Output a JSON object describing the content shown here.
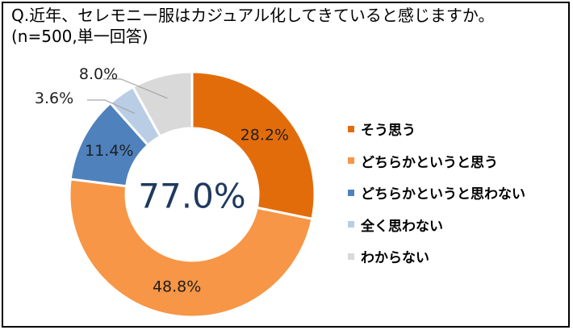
{
  "title": {
    "line1": "Q.近年、セレモニー服はカジュアル化してきていると感じますか。",
    "line2": "(n=500,単一回答)"
  },
  "chart_data": {
    "type": "pie",
    "donut": true,
    "center_label": "77.0%",
    "categories": [
      "そう思う",
      "どちらかというと思う",
      "どちらかというと思わない",
      "全く思わない",
      "わからない"
    ],
    "values": [
      28.2,
      48.8,
      11.4,
      3.6,
      8.0
    ],
    "value_labels": [
      "28.2%",
      "48.8%",
      "11.4%",
      "3.6%",
      "8.0%"
    ],
    "colors": [
      "#E36C0A",
      "#F79646",
      "#4F81BD",
      "#B9CDE5",
      "#D9D9D9"
    ],
    "legend_position": "right"
  }
}
